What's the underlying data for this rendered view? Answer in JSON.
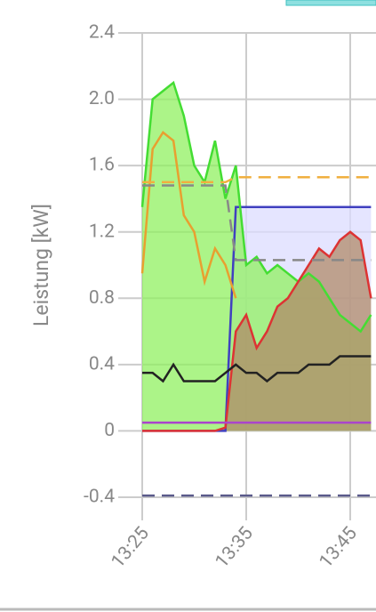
{
  "chart_data": {
    "type": "line",
    "ylabel": "Leistung [kW]",
    "ylim": [
      -0.4,
      2.4
    ],
    "yticks": [
      -0.4,
      0,
      0.4,
      0.8,
      1.2,
      1.6,
      {
        "value": 2,
        "label": "2.0"
      },
      2.4
    ],
    "x": [
      "13:25",
      "13:26",
      "13:27",
      "13:28",
      "13:29",
      "13:30",
      "13:31",
      "13:32",
      "13:33",
      "13:34",
      "13:35",
      "13:36",
      "13:37",
      "13:38",
      "13:39",
      "13:40",
      "13:41",
      "13:42",
      "13:43",
      "13:44",
      "13:45",
      "13:46",
      "13:47"
    ],
    "xticks": [
      "13:25",
      "13:35",
      "13:45"
    ],
    "grid": true,
    "series": [
      {
        "color": "#4040c0",
        "fill": "#dcdcff",
        "values": [
          0,
          0,
          0,
          0,
          0,
          0,
          0,
          0,
          0,
          1.35,
          1.35,
          1.35,
          1.35,
          1.35,
          1.35,
          1.35,
          1.35,
          1.35,
          1.35,
          1.35,
          1.35,
          1.35,
          1.35
        ]
      },
      {
        "color": "#44dd33",
        "fill": "#90f060",
        "values": [
          1.35,
          2.0,
          2.05,
          2.1,
          1.9,
          1.6,
          1.5,
          1.75,
          1.4,
          1.6,
          1.0,
          1.05,
          0.95,
          1.0,
          0.95,
          0.9,
          0.95,
          0.9,
          0.8,
          0.7,
          0.65,
          0.6,
          0.7
        ]
      },
      {
        "color": "#dd3333",
        "fill": "#b08a68",
        "values": [
          0,
          0,
          0,
          0,
          0,
          0,
          0,
          0,
          0.02,
          0.6,
          0.7,
          0.5,
          0.6,
          0.75,
          0.8,
          0.9,
          1.0,
          1.1,
          1.05,
          1.15,
          1.2,
          1.15,
          0.8
        ]
      },
      {
        "color": "#e8a030",
        "values": [
          0.95,
          1.7,
          1.8,
          1.75,
          1.3,
          1.2,
          0.9,
          1.1,
          1.0,
          0.8,
          null,
          null,
          null,
          null,
          null,
          null,
          null,
          null,
          null,
          null,
          null,
          null,
          null
        ]
      },
      {
        "color": "#aa44cc",
        "values": [
          0.05,
          0.05,
          0.05,
          0.05,
          0.05,
          0.05,
          0.05,
          0.05,
          0.05,
          0.05,
          0.05,
          0.05,
          0.05,
          0.05,
          0.05,
          0.05,
          0.05,
          0.05,
          0.05,
          0.05,
          0.05,
          0.05,
          0.05
        ]
      },
      {
        "color": "#222222",
        "values": [
          0.35,
          0.35,
          0.3,
          0.4,
          0.3,
          0.3,
          0.3,
          0.3,
          0.35,
          0.4,
          0.35,
          0.35,
          0.3,
          0.35,
          0.35,
          0.35,
          0.4,
          0.4,
          0.4,
          0.45,
          0.45,
          0.45,
          0.45
        ]
      },
      {
        "color": "#f0b040",
        "dash": true,
        "values": [
          1.5,
          1.5,
          1.5,
          1.5,
          1.5,
          1.5,
          1.5,
          1.5,
          1.5,
          1.53,
          1.53,
          1.53,
          1.53,
          1.53,
          1.53,
          1.53,
          1.53,
          1.53,
          1.53,
          1.53,
          1.53,
          1.53,
          1.53
        ]
      },
      {
        "color": "#888888",
        "dash": true,
        "values": [
          1.48,
          1.48,
          1.48,
          1.48,
          1.48,
          1.48,
          1.48,
          1.48,
          1.48,
          1.03,
          1.03,
          1.03,
          1.03,
          1.03,
          1.03,
          1.03,
          1.03,
          1.03,
          1.03,
          1.03,
          1.03,
          1.03,
          1.03
        ]
      },
      {
        "color": "#5a5a8a",
        "dash": true,
        "values": [
          -0.39,
          -0.39,
          -0.39,
          -0.39,
          -0.39,
          -0.39,
          -0.39,
          -0.39,
          -0.39,
          -0.39,
          -0.39,
          -0.39,
          -0.39,
          -0.39,
          -0.39,
          -0.39,
          -0.39,
          -0.39,
          -0.39,
          -0.39,
          -0.39,
          -0.39,
          -0.39
        ]
      }
    ]
  }
}
